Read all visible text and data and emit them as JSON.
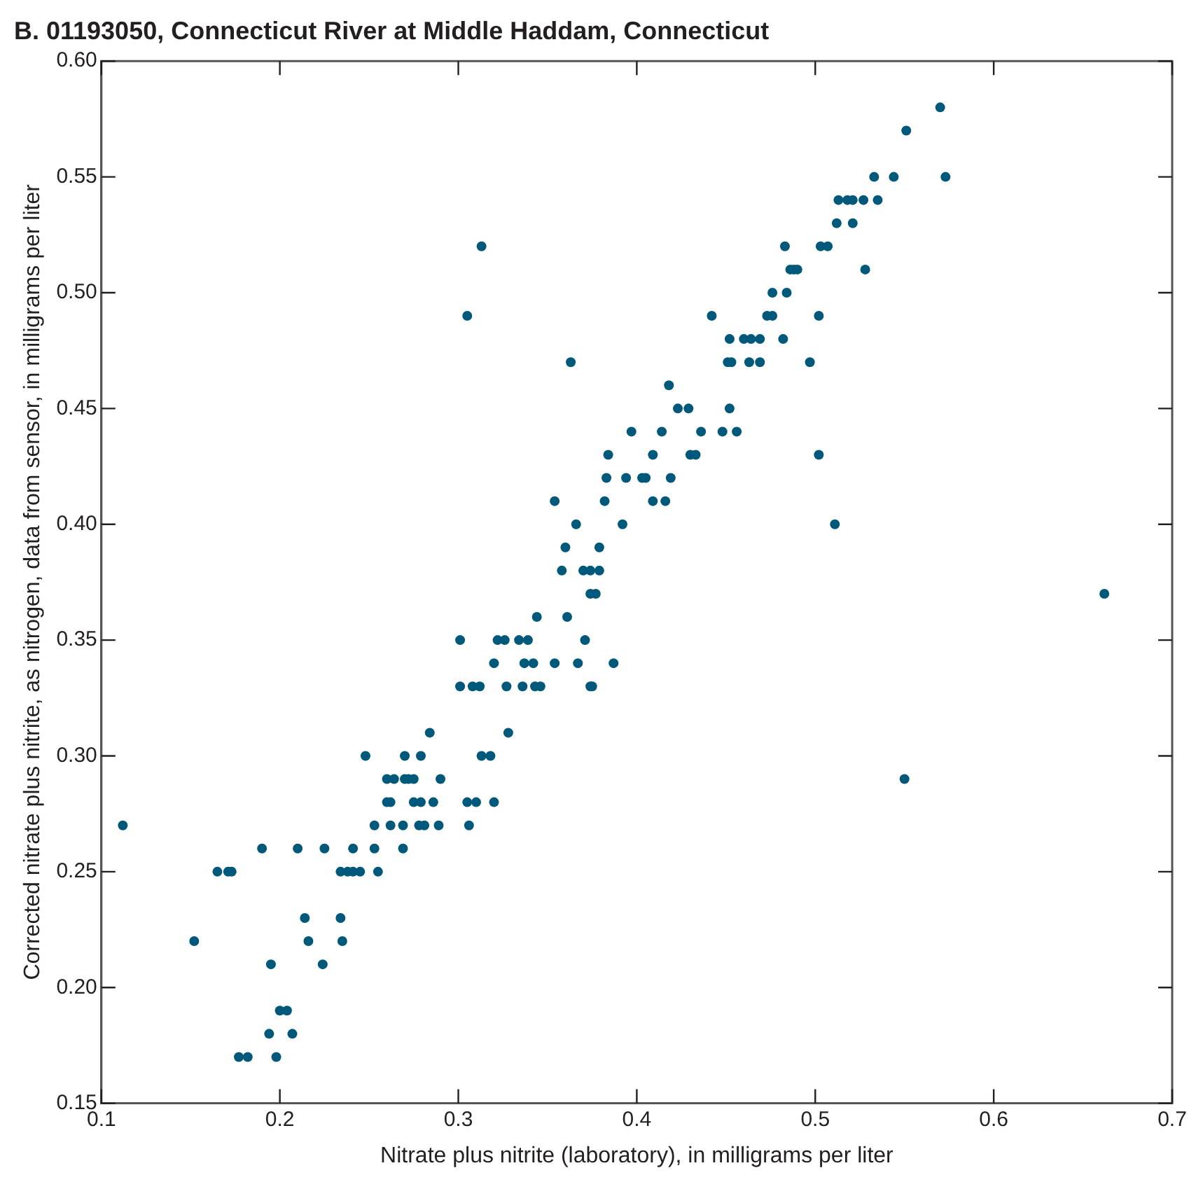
{
  "chart_data": {
    "type": "scatter",
    "title": "B. 01193050, Connecticut River at Middle Haddam, Connecticut",
    "xlabel": "Nitrate plus nitrite (laboratory), in milligrams per liter",
    "ylabel": "Corrected nitrate plus nitrite, as nitrogen, data from sensor, in milligrams per liter",
    "color": "#00587a",
    "marker": "circle",
    "grid": false,
    "legend": false,
    "xlim": [
      0.1,
      0.7
    ],
    "xticks": [
      0.1,
      0.2,
      0.3,
      0.4,
      0.5,
      0.6,
      0.7
    ],
    "ylim": [
      0.15,
      0.6
    ],
    "yticks": [
      {
        "value": 0.15,
        "label": "0.15"
      },
      {
        "value": 0.2,
        "label": "0.20"
      },
      {
        "value": 0.25,
        "label": "0.25"
      },
      {
        "value": 0.3,
        "label": "0.30"
      },
      {
        "value": 0.35,
        "label": "0.35"
      },
      {
        "value": 0.4,
        "label": "0.40"
      },
      {
        "value": 0.45,
        "label": "0.45"
      },
      {
        "value": 0.5,
        "label": "0.50"
      },
      {
        "value": 0.55,
        "label": "0.55"
      },
      {
        "value": 0.6,
        "label": "0.60"
      }
    ],
    "x": [
      0.57,
      0.551,
      0.533,
      0.544,
      0.573,
      0.513,
      0.518,
      0.521,
      0.527,
      0.535,
      0.512,
      0.521,
      0.313,
      0.483,
      0.503,
      0.507,
      0.486,
      0.488,
      0.49,
      0.528,
      0.476,
      0.484,
      0.305,
      0.442,
      0.473,
      0.476,
      0.502,
      0.452,
      0.46,
      0.464,
      0.469,
      0.482,
      0.363,
      0.451,
      0.453,
      0.463,
      0.469,
      0.497,
      0.418,
      0.423,
      0.429,
      0.452,
      0.397,
      0.414,
      0.436,
      0.448,
      0.456,
      0.384,
      0.409,
      0.43,
      0.433,
      0.502,
      0.383,
      0.394,
      0.403,
      0.405,
      0.419,
      0.354,
      0.382,
      0.409,
      0.416,
      0.366,
      0.392,
      0.511,
      0.36,
      0.379,
      0.358,
      0.37,
      0.374,
      0.379,
      0.374,
      0.377,
      0.662,
      0.344,
      0.361,
      0.301,
      0.322,
      0.326,
      0.334,
      0.339,
      0.371,
      0.32,
      0.337,
      0.342,
      0.354,
      0.367,
      0.387,
      0.301,
      0.308,
      0.312,
      0.327,
      0.336,
      0.343,
      0.346,
      0.374,
      0.375,
      0.284,
      0.328,
      0.248,
      0.27,
      0.279,
      0.313,
      0.318,
      0.26,
      0.264,
      0.27,
      0.272,
      0.275,
      0.29,
      0.55,
      0.26,
      0.262,
      0.275,
      0.279,
      0.286,
      0.305,
      0.31,
      0.32,
      0.112,
      0.253,
      0.262,
      0.269,
      0.278,
      0.281,
      0.289,
      0.306,
      0.19,
      0.21,
      0.225,
      0.241,
      0.253,
      0.269,
      0.165,
      0.171,
      0.173,
      0.234,
      0.238,
      0.241,
      0.245,
      0.255,
      0.214,
      0.234,
      0.152,
      0.216,
      0.235,
      0.195,
      0.224,
      0.2,
      0.204,
      0.194,
      0.207,
      0.177,
      0.182,
      0.198
    ],
    "values": [
      0.58,
      0.57,
      0.55,
      0.55,
      0.55,
      0.54,
      0.54,
      0.54,
      0.54,
      0.54,
      0.53,
      0.53,
      0.52,
      0.52,
      0.52,
      0.52,
      0.51,
      0.51,
      0.51,
      0.51,
      0.5,
      0.5,
      0.49,
      0.49,
      0.49,
      0.49,
      0.49,
      0.48,
      0.48,
      0.48,
      0.48,
      0.48,
      0.47,
      0.47,
      0.47,
      0.47,
      0.47,
      0.47,
      0.46,
      0.45,
      0.45,
      0.45,
      0.44,
      0.44,
      0.44,
      0.44,
      0.44,
      0.43,
      0.43,
      0.43,
      0.43,
      0.43,
      0.42,
      0.42,
      0.42,
      0.42,
      0.42,
      0.41,
      0.41,
      0.41,
      0.41,
      0.4,
      0.4,
      0.4,
      0.39,
      0.39,
      0.38,
      0.38,
      0.38,
      0.38,
      0.37,
      0.37,
      0.37,
      0.36,
      0.36,
      0.35,
      0.35,
      0.35,
      0.35,
      0.35,
      0.35,
      0.34,
      0.34,
      0.34,
      0.34,
      0.34,
      0.34,
      0.33,
      0.33,
      0.33,
      0.33,
      0.33,
      0.33,
      0.33,
      0.33,
      0.33,
      0.31,
      0.31,
      0.3,
      0.3,
      0.3,
      0.3,
      0.3,
      0.29,
      0.29,
      0.29,
      0.29,
      0.29,
      0.29,
      0.29,
      0.28,
      0.28,
      0.28,
      0.28,
      0.28,
      0.28,
      0.28,
      0.28,
      0.27,
      0.27,
      0.27,
      0.27,
      0.27,
      0.27,
      0.27,
      0.27,
      0.26,
      0.26,
      0.26,
      0.26,
      0.26,
      0.26,
      0.25,
      0.25,
      0.25,
      0.25,
      0.25,
      0.25,
      0.25,
      0.25,
      0.23,
      0.23,
      0.22,
      0.22,
      0.22,
      0.21,
      0.21,
      0.19,
      0.19,
      0.18,
      0.18,
      0.17,
      0.17,
      0.17
    ]
  }
}
